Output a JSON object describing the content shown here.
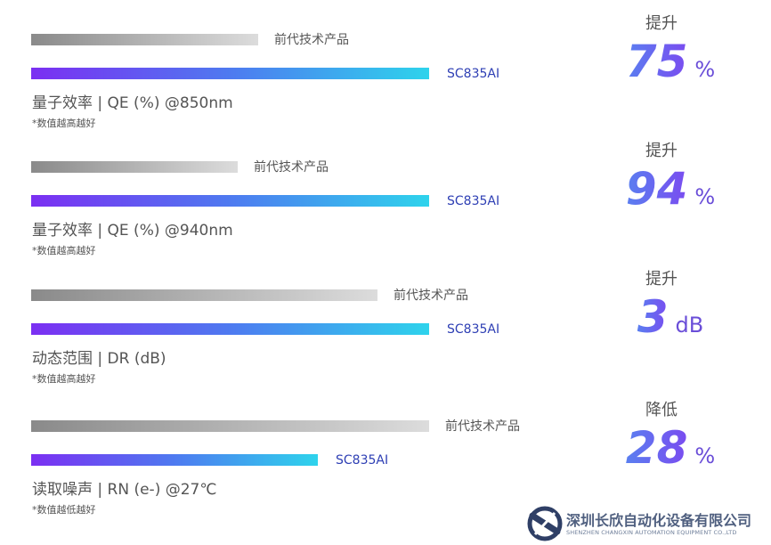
{
  "chart_data": [
    {
      "type": "bar",
      "title": "量子效率 | QE (%) @850nm",
      "note": "*数值越高越好",
      "categories": [
        "前代技术产品",
        "SC835AI"
      ],
      "values": [
        57,
        100
      ],
      "change_label": "提升",
      "change_value": "75",
      "change_unit": "%"
    },
    {
      "type": "bar",
      "title": "量子效率 | QE (%) @940nm",
      "note": "*数值越高越好",
      "categories": [
        "前代技术产品",
        "SC835AI"
      ],
      "values": [
        52,
        100
      ],
      "change_label": "提升",
      "change_value": "94",
      "change_unit": "%"
    },
    {
      "type": "bar",
      "title": "动态范围 | DR (dB)",
      "note": "*数值越高越好",
      "categories": [
        "前代技术产品",
        "SC835AI"
      ],
      "values": [
        87,
        100
      ],
      "change_label": "提升",
      "change_value": "3",
      "change_unit": "dB"
    },
    {
      "type": "bar",
      "title": "读取噪声 | RN (e-) @27℃",
      "note": "*数值越低越好",
      "categories": [
        "前代技术产品",
        "SC835AI"
      ],
      "values": [
        100,
        72
      ],
      "change_label": "降低",
      "change_value": "28",
      "change_unit": "%"
    }
  ],
  "logo": {
    "name": "深圳长欣自动化设备有限公司",
    "sub": "SHENZHEN CHANGXIN AUTOMATION EQUIPMENT CO.,LTD",
    "color": "#3f4f6f"
  }
}
